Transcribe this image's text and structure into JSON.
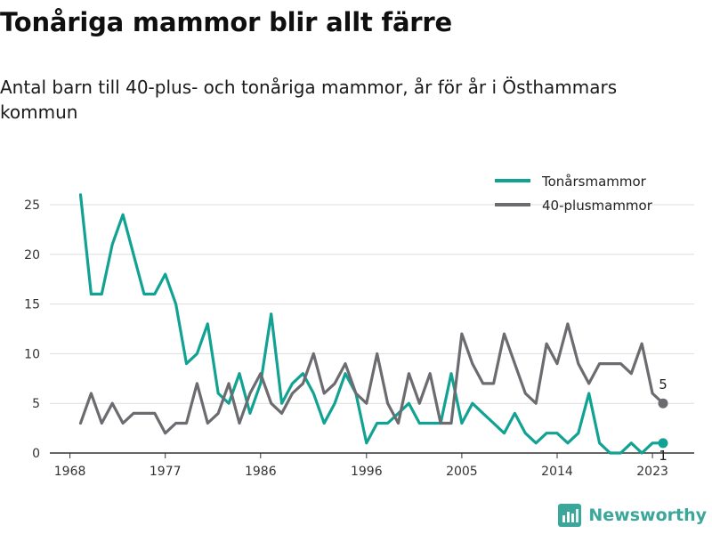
{
  "header": {
    "title": "Tonåriga mammor blir allt färre",
    "subtitle": "Antal barn till 40-plus- och tonåriga mammor, år för år i Östhammars kommun"
  },
  "brand": {
    "name": "Newsworthy",
    "icon": "newsworthy-logo-icon",
    "color": "#3aa79a"
  },
  "chart_data": {
    "type": "line",
    "x_ticks": [
      "1968",
      "1977",
      "1986",
      "1996",
      "2005",
      "2014",
      "2023"
    ],
    "y_ticks": [
      "0",
      "5",
      "10",
      "15",
      "20",
      "25"
    ],
    "xlim": [
      1968,
      2024
    ],
    "ylim": [
      0,
      27.5
    ],
    "grid": "horizontal",
    "legend_position": "top-right",
    "x": [
      1969,
      1970,
      1971,
      1972,
      1973,
      1974,
      1975,
      1976,
      1977,
      1978,
      1979,
      1980,
      1981,
      1982,
      1983,
      1984,
      1985,
      1986,
      1987,
      1988,
      1989,
      1990,
      1991,
      1992,
      1993,
      1994,
      1995,
      1996,
      1997,
      1998,
      1999,
      2000,
      2001,
      2002,
      2003,
      2004,
      2005,
      2006,
      2007,
      2008,
      2009,
      2010,
      2011,
      2012,
      2013,
      2014,
      2015,
      2016,
      2017,
      2018,
      2019,
      2020,
      2021,
      2022,
      2023,
      2024
    ],
    "series": [
      {
        "name": "Tonårsmammor",
        "color": "#12a293",
        "values": [
          26,
          16,
          16,
          21,
          24,
          20,
          16,
          16,
          18,
          15,
          9,
          10,
          13,
          6,
          5,
          8,
          4,
          7,
          14,
          5,
          7,
          8,
          6,
          3,
          5,
          8,
          6,
          1,
          3,
          3,
          4,
          5,
          3,
          3,
          3,
          8,
          3,
          5,
          4,
          3,
          2,
          4,
          2,
          1,
          2,
          2,
          1,
          2,
          6,
          1,
          0,
          0,
          1,
          0,
          1,
          1
        ],
        "end_label": "1"
      },
      {
        "name": "40-plusmammor",
        "color": "#6b6b70",
        "values": [
          3,
          6,
          3,
          5,
          3,
          4,
          4,
          4,
          2,
          3,
          3,
          7,
          3,
          4,
          7,
          3,
          6,
          8,
          5,
          4,
          6,
          7,
          10,
          6,
          7,
          9,
          6,
          5,
          10,
          5,
          3,
          8,
          5,
          8,
          3,
          3,
          12,
          9,
          7,
          7,
          12,
          9,
          6,
          5,
          11,
          9,
          13,
          9,
          7,
          9,
          9,
          9,
          8,
          11,
          6,
          5
        ],
        "end_label": "5"
      }
    ]
  }
}
